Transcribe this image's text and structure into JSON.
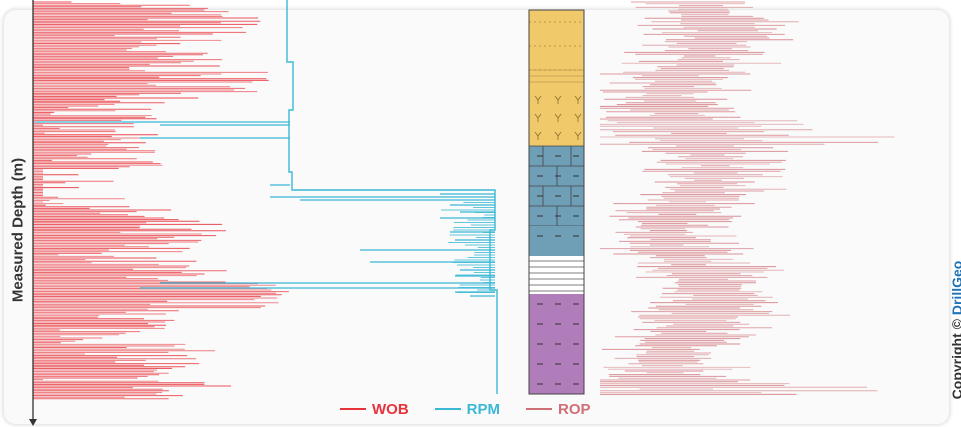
{
  "chart_data": {
    "type": "line",
    "ylabel": "Measured Depth  (m)",
    "series": [
      {
        "name": "WOB",
        "color": "#e8333b"
      },
      {
        "name": "RPM",
        "color": "#3bb8d6"
      },
      {
        "name": "ROP",
        "color": "#cf6f76"
      }
    ],
    "lithology_column": [
      {
        "lithology": "sandstone",
        "color": "#efc96a"
      },
      {
        "lithology": "siltstone",
        "color": "#efc96a"
      },
      {
        "lithology": "limestone",
        "color": "#6f9fb6"
      },
      {
        "lithology": "shale",
        "color": "#6f9fb6"
      },
      {
        "lithology": "interbedded",
        "color": "#ffffff"
      },
      {
        "lithology": "claystone",
        "color": "#b07cba"
      }
    ]
  },
  "legend": [
    {
      "label": "WOB",
      "color": "#e8333b"
    },
    {
      "label": "RPM",
      "color": "#3bb8d6"
    },
    {
      "label": "ROP",
      "color": "#cf6f76"
    }
  ],
  "copyright": {
    "prefix": "Copyright © ",
    "brand": "DrillGeo"
  }
}
